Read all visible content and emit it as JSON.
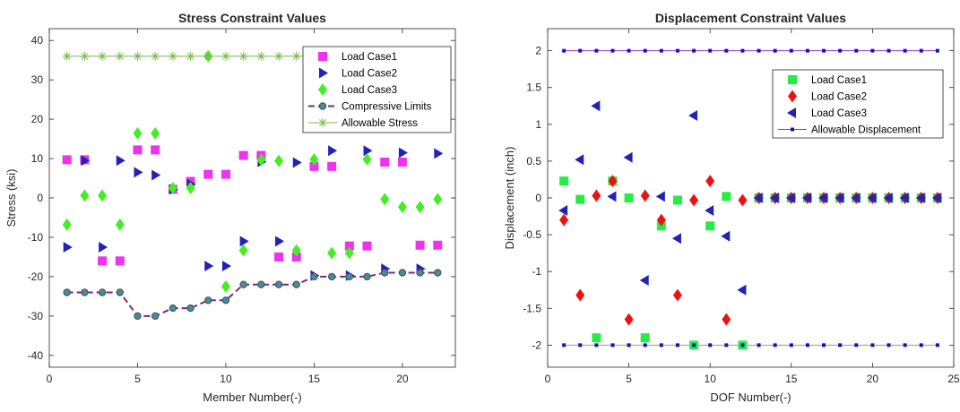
{
  "chart_data": [
    {
      "type": "scatter",
      "title": "Stress Constraint Values",
      "xlabel": "Member Number(-)",
      "ylabel": "Stress (ksi)",
      "xlim": [
        0,
        23
      ],
      "ylim": [
        -43,
        43
      ],
      "xticks": [
        0,
        5,
        10,
        15,
        20
      ],
      "yticks": [
        -40,
        -30,
        -20,
        -10,
        0,
        10,
        20,
        30,
        40
      ],
      "legend_position": "top-right",
      "series": [
        {
          "name": "Load Case1",
          "marker": "square",
          "color": "#ee33ee",
          "x": [
            1,
            2,
            3,
            4,
            5,
            6,
            7,
            8,
            9,
            10,
            11,
            12,
            13,
            14,
            15,
            16,
            17,
            18,
            19,
            20,
            21,
            22
          ],
          "y": [
            9.7,
            9.7,
            -16,
            -16,
            12.2,
            12.2,
            2.2,
            4.2,
            6.0,
            6.0,
            10.8,
            10.8,
            -15,
            -15,
            8,
            8,
            -12.2,
            -12.2,
            9.1,
            9.1,
            -12,
            -12
          ]
        },
        {
          "name": "Load Case2",
          "marker": "triangle-right",
          "color": "#2222bb",
          "x": [
            1,
            2,
            3,
            4,
            5,
            6,
            7,
            8,
            9,
            10,
            11,
            12,
            13,
            14,
            15,
            16,
            17,
            18,
            19,
            20,
            21,
            22
          ],
          "y": [
            -12.5,
            9.5,
            -12.5,
            9.5,
            6.5,
            5.8,
            2.2,
            3.5,
            -17.3,
            -17.3,
            -11,
            9.2,
            -11,
            9.0,
            -19.7,
            12,
            -19.7,
            12,
            -18,
            11.5,
            -18,
            11.3
          ]
        },
        {
          "name": "Load Case3",
          "marker": "diamond",
          "color": "#44ee22",
          "x": [
            1,
            2,
            3,
            4,
            5,
            6,
            7,
            8,
            9,
            10,
            11,
            12,
            13,
            14,
            15,
            16,
            17,
            18,
            19,
            20,
            21,
            22
          ],
          "y": [
            -6.8,
            0.6,
            0.6,
            -6.8,
            16.4,
            16.4,
            2.5,
            2.5,
            36,
            -22.5,
            -13.3,
            9.7,
            9.4,
            -13.3,
            9.8,
            -14,
            -14,
            9.8,
            -0.3,
            -2.3,
            -2.3,
            -0.3
          ]
        },
        {
          "name": "Compressive Limits",
          "marker": "circle-line",
          "color": "#666666",
          "line_color": "#7a2a7a",
          "x": [
            1,
            2,
            3,
            4,
            5,
            6,
            7,
            8,
            9,
            10,
            11,
            12,
            13,
            14,
            15,
            16,
            17,
            18,
            19,
            20,
            21,
            22
          ],
          "y": [
            -24,
            -24,
            -24,
            -24,
            -30,
            -30,
            -28,
            -28,
            -26,
            -26,
            -22,
            -22,
            -22,
            -22,
            -20,
            -20,
            -20,
            -20,
            -19,
            -19,
            -19,
            -19
          ]
        },
        {
          "name": "Allowable Stress",
          "marker": "asterisk-line",
          "color": "#77bb44",
          "x": [
            1,
            2,
            3,
            4,
            5,
            6,
            7,
            8,
            9,
            10,
            11,
            12,
            13,
            14,
            15,
            16,
            17,
            18,
            19,
            20,
            21,
            22
          ],
          "y": [
            36,
            36,
            36,
            36,
            36,
            36,
            36,
            36,
            36,
            36,
            36,
            36,
            36,
            36,
            36,
            36,
            36,
            36,
            36,
            36,
            36,
            36
          ]
        }
      ]
    },
    {
      "type": "scatter",
      "title": "Displacement Constraint Values",
      "xlabel": "DOF Number(-)",
      "ylabel": "Displacement (inch)",
      "xlim": [
        0,
        25
      ],
      "ylim": [
        -2.3,
        2.3
      ],
      "xticks": [
        0,
        5,
        10,
        15,
        20,
        25
      ],
      "yticks": [
        -2,
        -1.5,
        -1,
        -0.5,
        0,
        0.5,
        1,
        1.5,
        2
      ],
      "legend_position": "top-right",
      "series": [
        {
          "name": "Load Case1",
          "marker": "square",
          "color": "#22ee44",
          "x": [
            1,
            2,
            3,
            4,
            5,
            6,
            7,
            8,
            9,
            10,
            11,
            12,
            13,
            14,
            15,
            16,
            17,
            18,
            19,
            20,
            21,
            22,
            23,
            24
          ],
          "y": [
            0.23,
            -0.02,
            -1.9,
            0.23,
            0,
            -1.9,
            -0.38,
            -0.03,
            -2.0,
            -0.38,
            0.02,
            -2.0,
            0,
            0,
            0,
            0,
            0,
            0,
            0,
            0,
            0,
            0,
            0,
            0
          ]
        },
        {
          "name": "Load Case2",
          "marker": "diamond",
          "color": "#ee1111",
          "x": [
            1,
            2,
            3,
            4,
            5,
            6,
            7,
            8,
            9,
            10,
            11,
            12,
            13,
            14,
            15,
            16,
            17,
            18,
            19,
            20,
            21,
            22,
            23,
            24
          ],
          "y": [
            -0.3,
            -1.32,
            0.03,
            0.23,
            -1.65,
            0.03,
            -0.3,
            -1.32,
            -0.03,
            0.23,
            -1.65,
            -0.03,
            0,
            0,
            0,
            0,
            0,
            0,
            0,
            0,
            0,
            0,
            0,
            0
          ]
        },
        {
          "name": "Load Case3",
          "marker": "triangle-left",
          "color": "#2222bb",
          "x": [
            1,
            2,
            3,
            4,
            5,
            6,
            7,
            8,
            9,
            10,
            11,
            12,
            13,
            14,
            15,
            16,
            17,
            18,
            19,
            20,
            21,
            22,
            23,
            24
          ],
          "y": [
            -0.17,
            0.52,
            1.25,
            0.02,
            0.55,
            -1.12,
            0.02,
            -0.55,
            1.12,
            -0.17,
            -0.52,
            -1.25,
            0,
            0,
            0,
            0,
            0,
            0,
            0,
            0,
            0,
            0,
            0,
            0
          ]
        },
        {
          "name": "Allowable Displacement",
          "marker": "square-line",
          "color": "#1111cc",
          "line_color": "#9933bb",
          "x": [
            1,
            2,
            3,
            4,
            5,
            6,
            7,
            8,
            9,
            10,
            11,
            12,
            13,
            14,
            15,
            16,
            17,
            18,
            19,
            20,
            21,
            22,
            23,
            24
          ],
          "y": [
            2,
            2,
            2,
            2,
            2,
            2,
            2,
            2,
            2,
            2,
            2,
            2,
            2,
            2,
            2,
            2,
            2,
            2,
            2,
            2,
            2,
            2,
            2,
            2
          ],
          "y2": [
            -2,
            -2,
            -2,
            -2,
            -2,
            -2,
            -2,
            -2,
            -2,
            -2,
            -2,
            -2,
            -2,
            -2,
            -2,
            -2,
            -2,
            -2,
            -2,
            -2,
            -2,
            -2,
            -2,
            -2
          ],
          "line2_color": "#77bb44"
        }
      ]
    }
  ]
}
